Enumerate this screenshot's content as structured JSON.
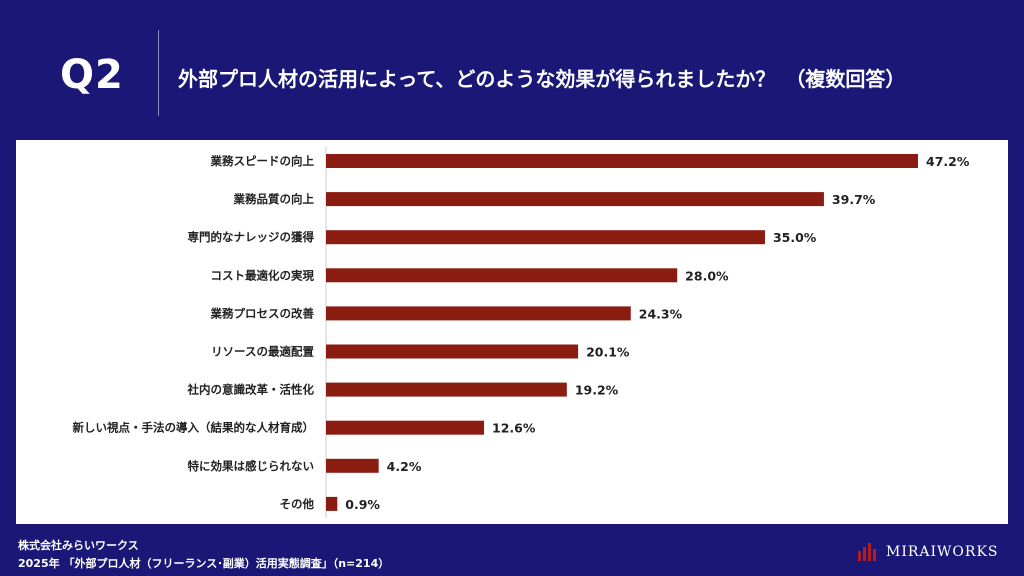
{
  "header": {
    "question": "Q2",
    "title": "外部プロ人材の活用によって、どのような効果が得られましたか？　（複数回答）"
  },
  "footer": {
    "company": "株式会社みらいワークス",
    "source": "2025年 「外部プロ人材（フリーランス･副業）活用実態調査」（n=214）",
    "logo": "MIRAIWORKS"
  },
  "colors": {
    "background": "#1a1776",
    "bar": "#8b1c12",
    "logo_accent": "#b71c1c"
  },
  "chart_data": {
    "type": "bar",
    "orientation": "horizontal",
    "title": "外部プロ人材の活用によって、どのような効果が得られましたか？　（複数回答）",
    "unit": "%",
    "categories": [
      "業務スピードの向上",
      "業務品質の向上",
      "専門的なナレッジの獲得",
      "コスト最適化の実現",
      "業務プロセスの改善",
      "リソースの最適配置",
      "社内の意識改革・活性化",
      "新しい視点・手法の導入（結果的な人材育成）",
      "特に効果は感じられない",
      "その他"
    ],
    "values": [
      47.2,
      39.7,
      35.0,
      28.0,
      24.3,
      20.1,
      19.2,
      12.6,
      4.2,
      0.9
    ],
    "value_labels": [
      "47.2%",
      "39.7%",
      "35.0%",
      "28.0%",
      "24.3%",
      "20.1%",
      "19.2%",
      "12.6%",
      "4.2%",
      "0.9%"
    ],
    "xlim": [
      0,
      50
    ]
  }
}
